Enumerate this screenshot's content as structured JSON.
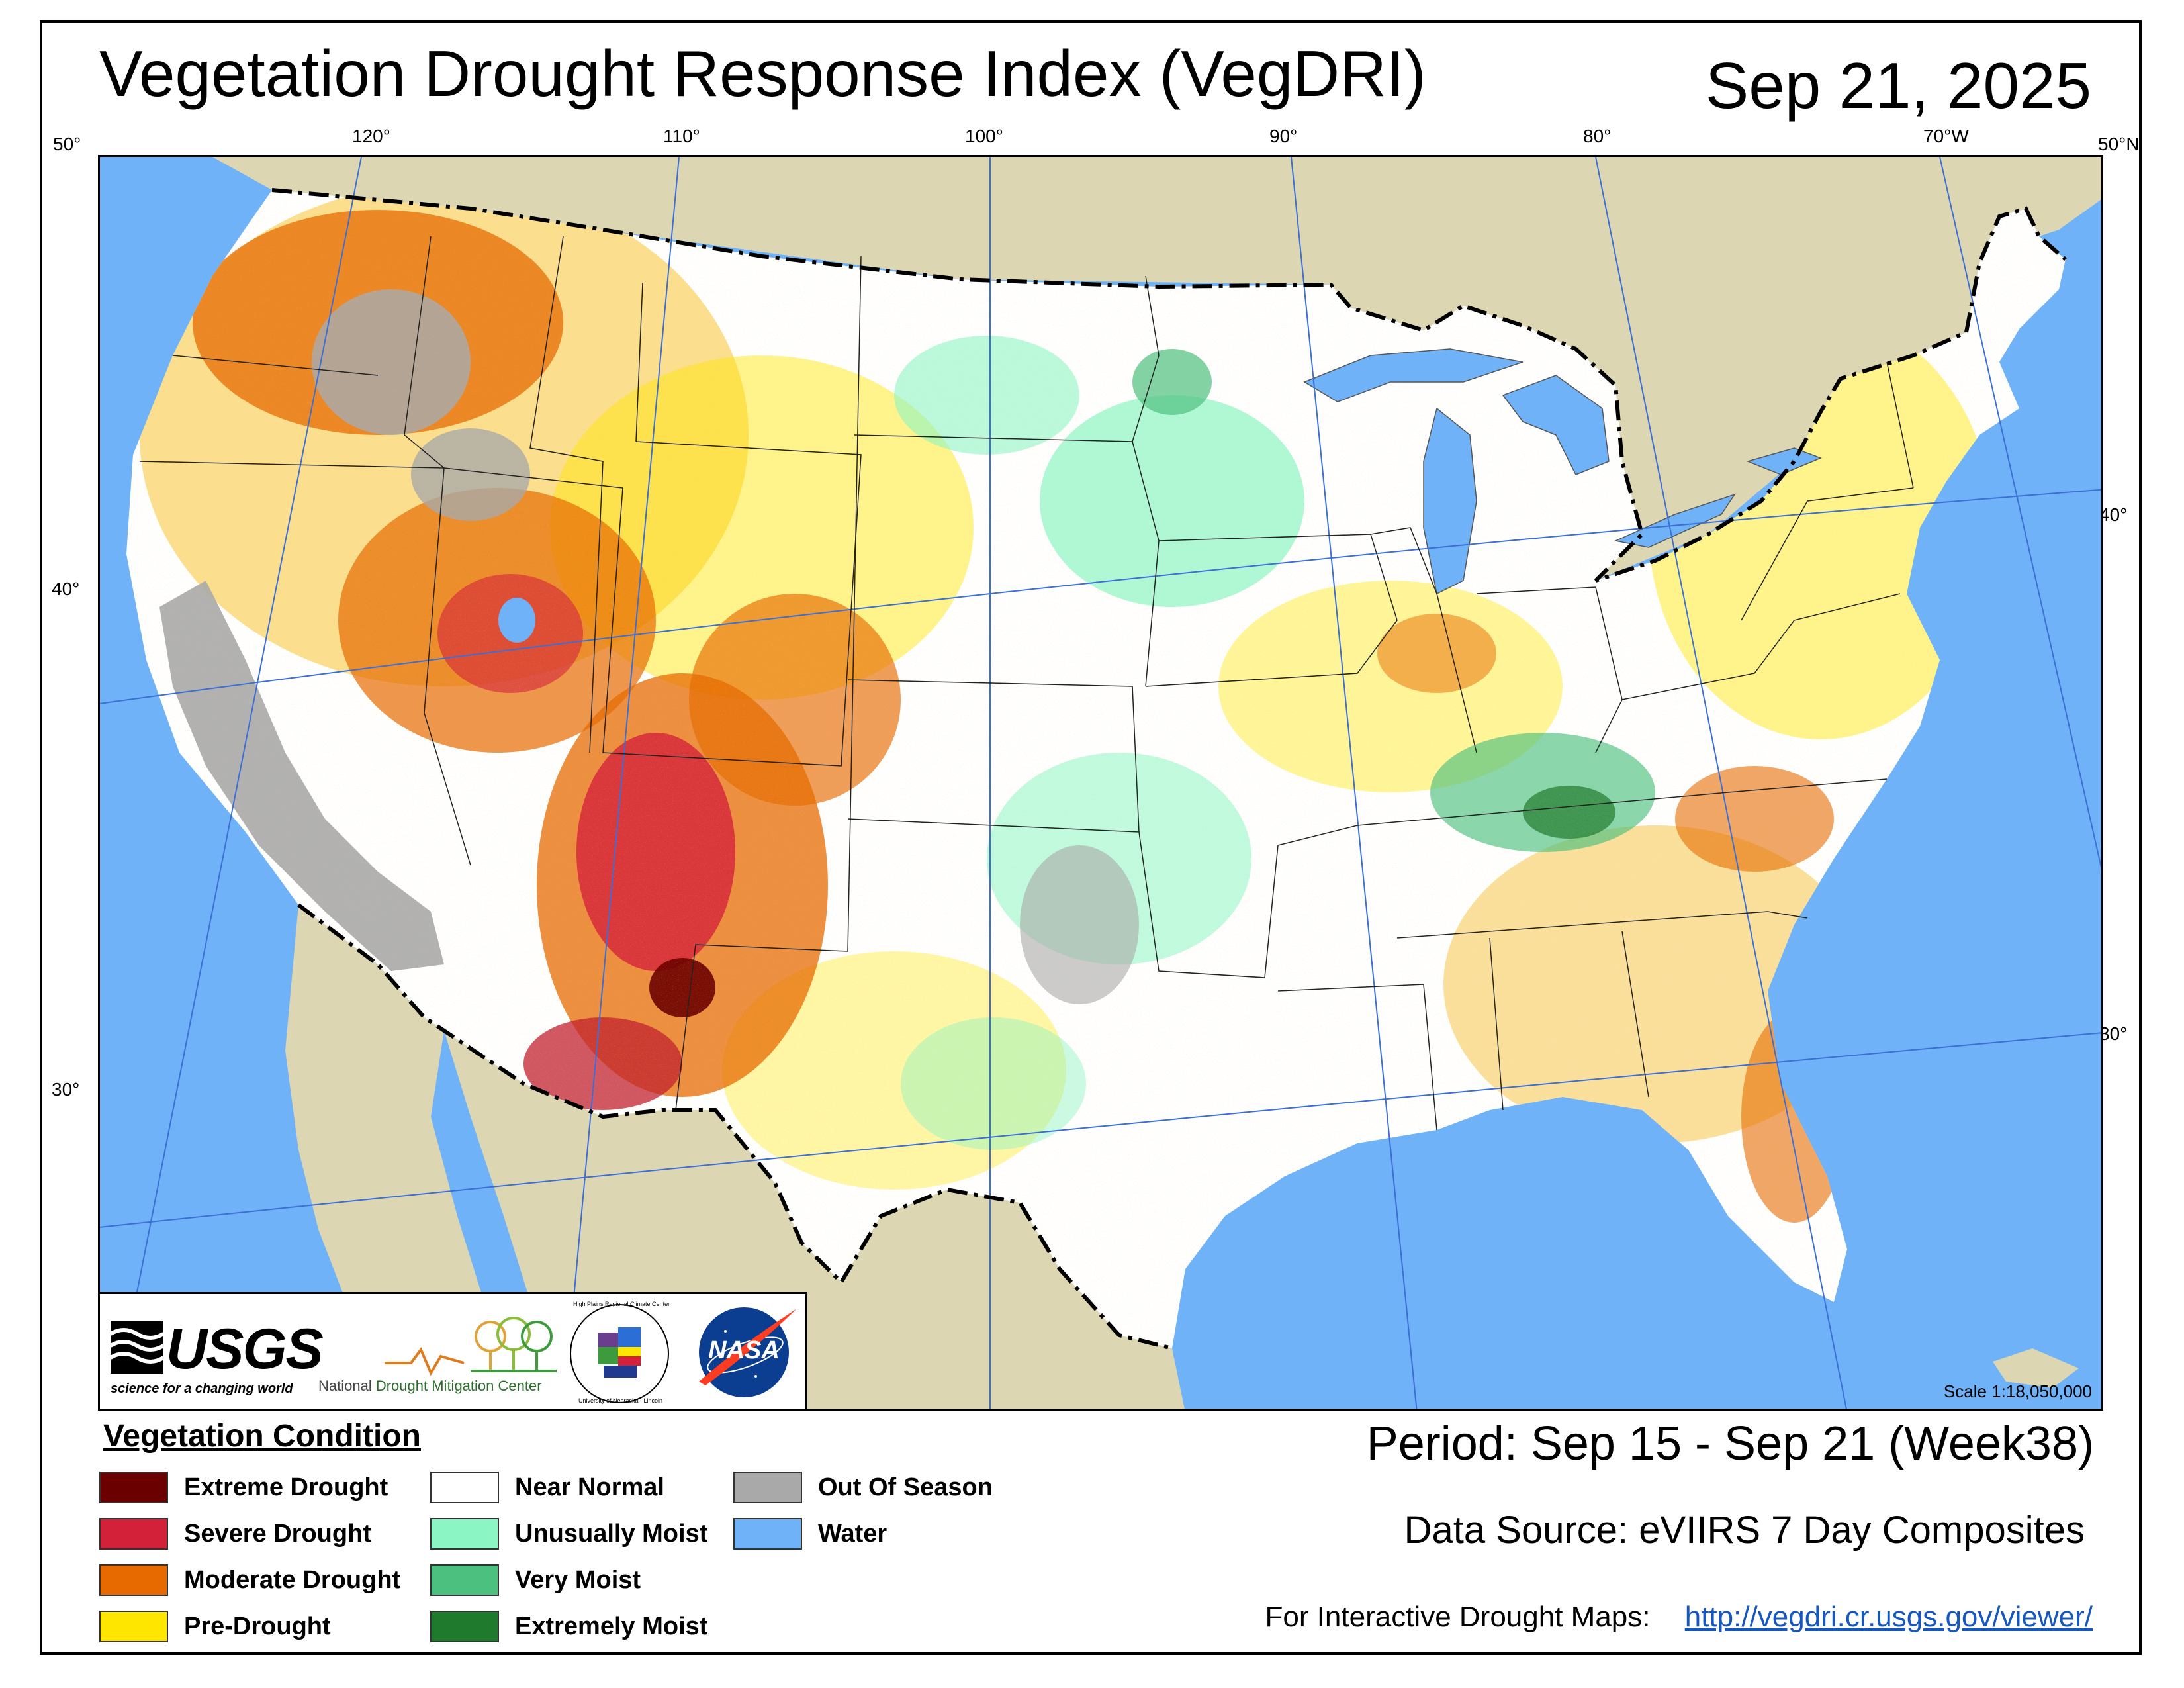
{
  "title": "Vegetation Drought Response Index (VegDRI)",
  "date": "Sep 21, 2025",
  "graticule": {
    "lat_left": [
      "50°",
      "40°",
      "30°"
    ],
    "lat_right": [
      "50°N",
      "40°",
      "30°"
    ],
    "lon_top": [
      "120°",
      "110°",
      "100°",
      "90°",
      "80°",
      "70°W"
    ]
  },
  "logos": {
    "usgs_name": "USGS",
    "usgs_tagline": "science for a changing world",
    "ndmc_prefix": "National",
    "ndmc_name": "Drought Mitigation Center",
    "hprcc_name": "High Plains Regional Climate Center",
    "hprcc_sub": "University of Nebraska - Lincoln",
    "nasa_name": "NASA"
  },
  "scale": "Scale 1:18,050,000",
  "legend": {
    "title": "Vegetation Condition",
    "items": [
      {
        "label": "Extreme Drought",
        "color": "#6b0000"
      },
      {
        "label": "Severe Drought",
        "color": "#d4213a"
      },
      {
        "label": "Moderate Drought",
        "color": "#e66a00"
      },
      {
        "label": "Pre-Drought",
        "color": "#ffe600"
      },
      {
        "label": "Near Normal",
        "color": "#ffffff"
      },
      {
        "label": "Unusually Moist",
        "color": "#8cf5c4"
      },
      {
        "label": "Very Moist",
        "color": "#4cc07f"
      },
      {
        "label": "Extremely Moist",
        "color": "#1f7a2e"
      },
      {
        "label": "Out Of Season",
        "color": "#a9a9a9"
      },
      {
        "label": "Water",
        "color": "#6fb2f7"
      }
    ]
  },
  "period": "Period:  Sep 15 - Sep 21 (Week38)",
  "data_source": "Data Source:  eVIIRS 7 Day Composites",
  "interactive_label": "For Interactive Drought Maps:",
  "interactive_url": "http://vegdri.cr.usgs.gov/viewer/",
  "colors": {
    "ocean": "#6fb2f7",
    "land_outside": "#ddd6b3",
    "land_near_normal": "#ffffff",
    "graticule": "#3b6fd6",
    "border": "#000000"
  }
}
